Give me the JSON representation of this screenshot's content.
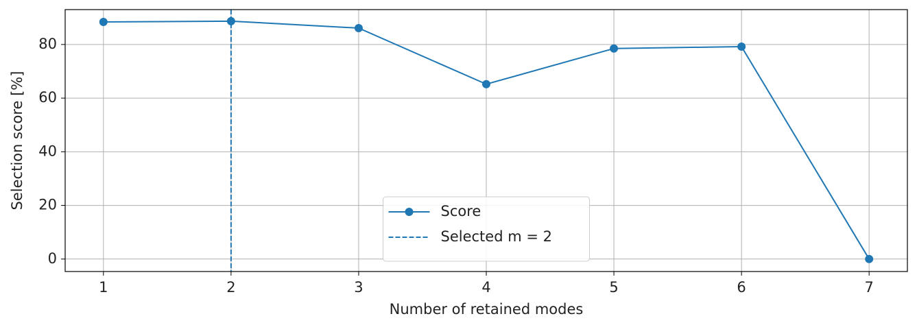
{
  "chart_data": {
    "type": "line",
    "x": [
      1,
      2,
      3,
      4,
      5,
      6,
      7
    ],
    "series": [
      {
        "name": "Score",
        "color": "#1f77b4",
        "values": [
          88.4,
          88.7,
          86.1,
          65.2,
          78.5,
          79.2,
          0
        ],
        "marker": "circle"
      }
    ],
    "vlines": [
      {
        "name": "Selected m = 2",
        "x": 2,
        "color": "#1f77b4",
        "style": "dashed"
      }
    ],
    "xlabel": "Number of retained modes",
    "ylabel": "Selection score [%]",
    "xlim": [
      0.7,
      7.3
    ],
    "xticks": [
      1,
      2,
      3,
      4,
      5,
      6,
      7
    ],
    "ylim": [
      -4.65,
      93.0
    ],
    "yticks": [
      0,
      20,
      40,
      60,
      80
    ],
    "grid": true,
    "legend": "lower center"
  }
}
